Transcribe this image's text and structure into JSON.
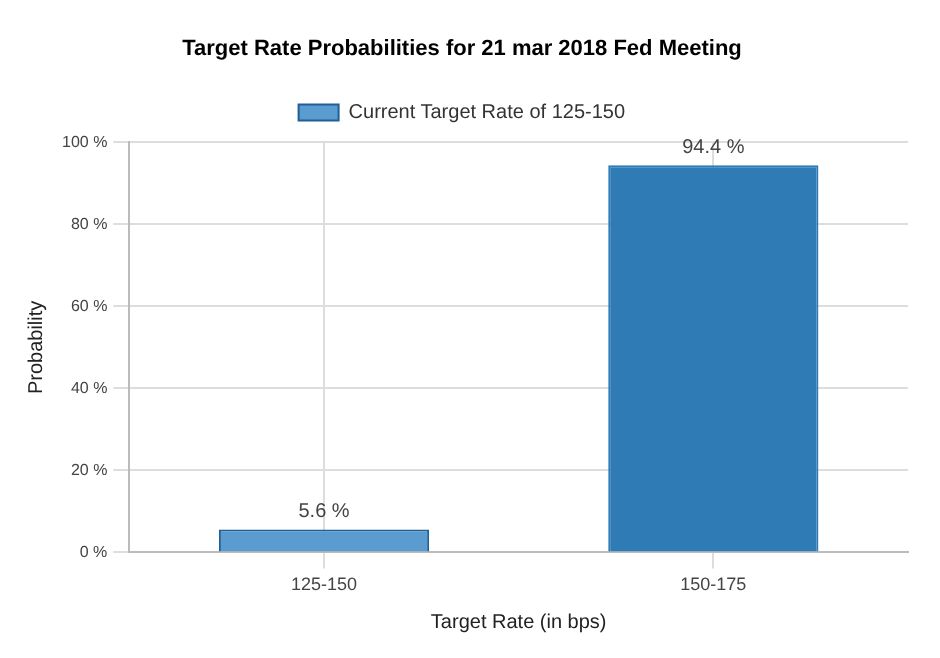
{
  "chart_data": {
    "type": "bar",
    "title": "Target Rate Probabilities for 21 mar 2018 Fed Meeting",
    "xlabel": "Target Rate (in bps)",
    "ylabel": "Probability",
    "categories": [
      "125-150",
      "150-175"
    ],
    "series": [
      {
        "name": "Current Target Rate of 125-150",
        "color": "#5a9bd0",
        "values": [
          5.6,
          null
        ],
        "value_labels": [
          "5.6 %",
          null
        ]
      },
      {
        "color": "#2e7bb6",
        "values": [
          null,
          94.4
        ],
        "value_labels": [
          null,
          "94.4 %"
        ]
      }
    ],
    "ylim": [
      0,
      100
    ],
    "yticks": [
      {
        "value": 0,
        "label": "0 %"
      },
      {
        "value": 20,
        "label": "20 %"
      },
      {
        "value": 40,
        "label": "40 %"
      },
      {
        "value": 60,
        "label": "60 %"
      },
      {
        "value": 80,
        "label": "80 %"
      },
      {
        "value": 100,
        "label": "100 %"
      }
    ],
    "grid": true,
    "legend": "top"
  }
}
